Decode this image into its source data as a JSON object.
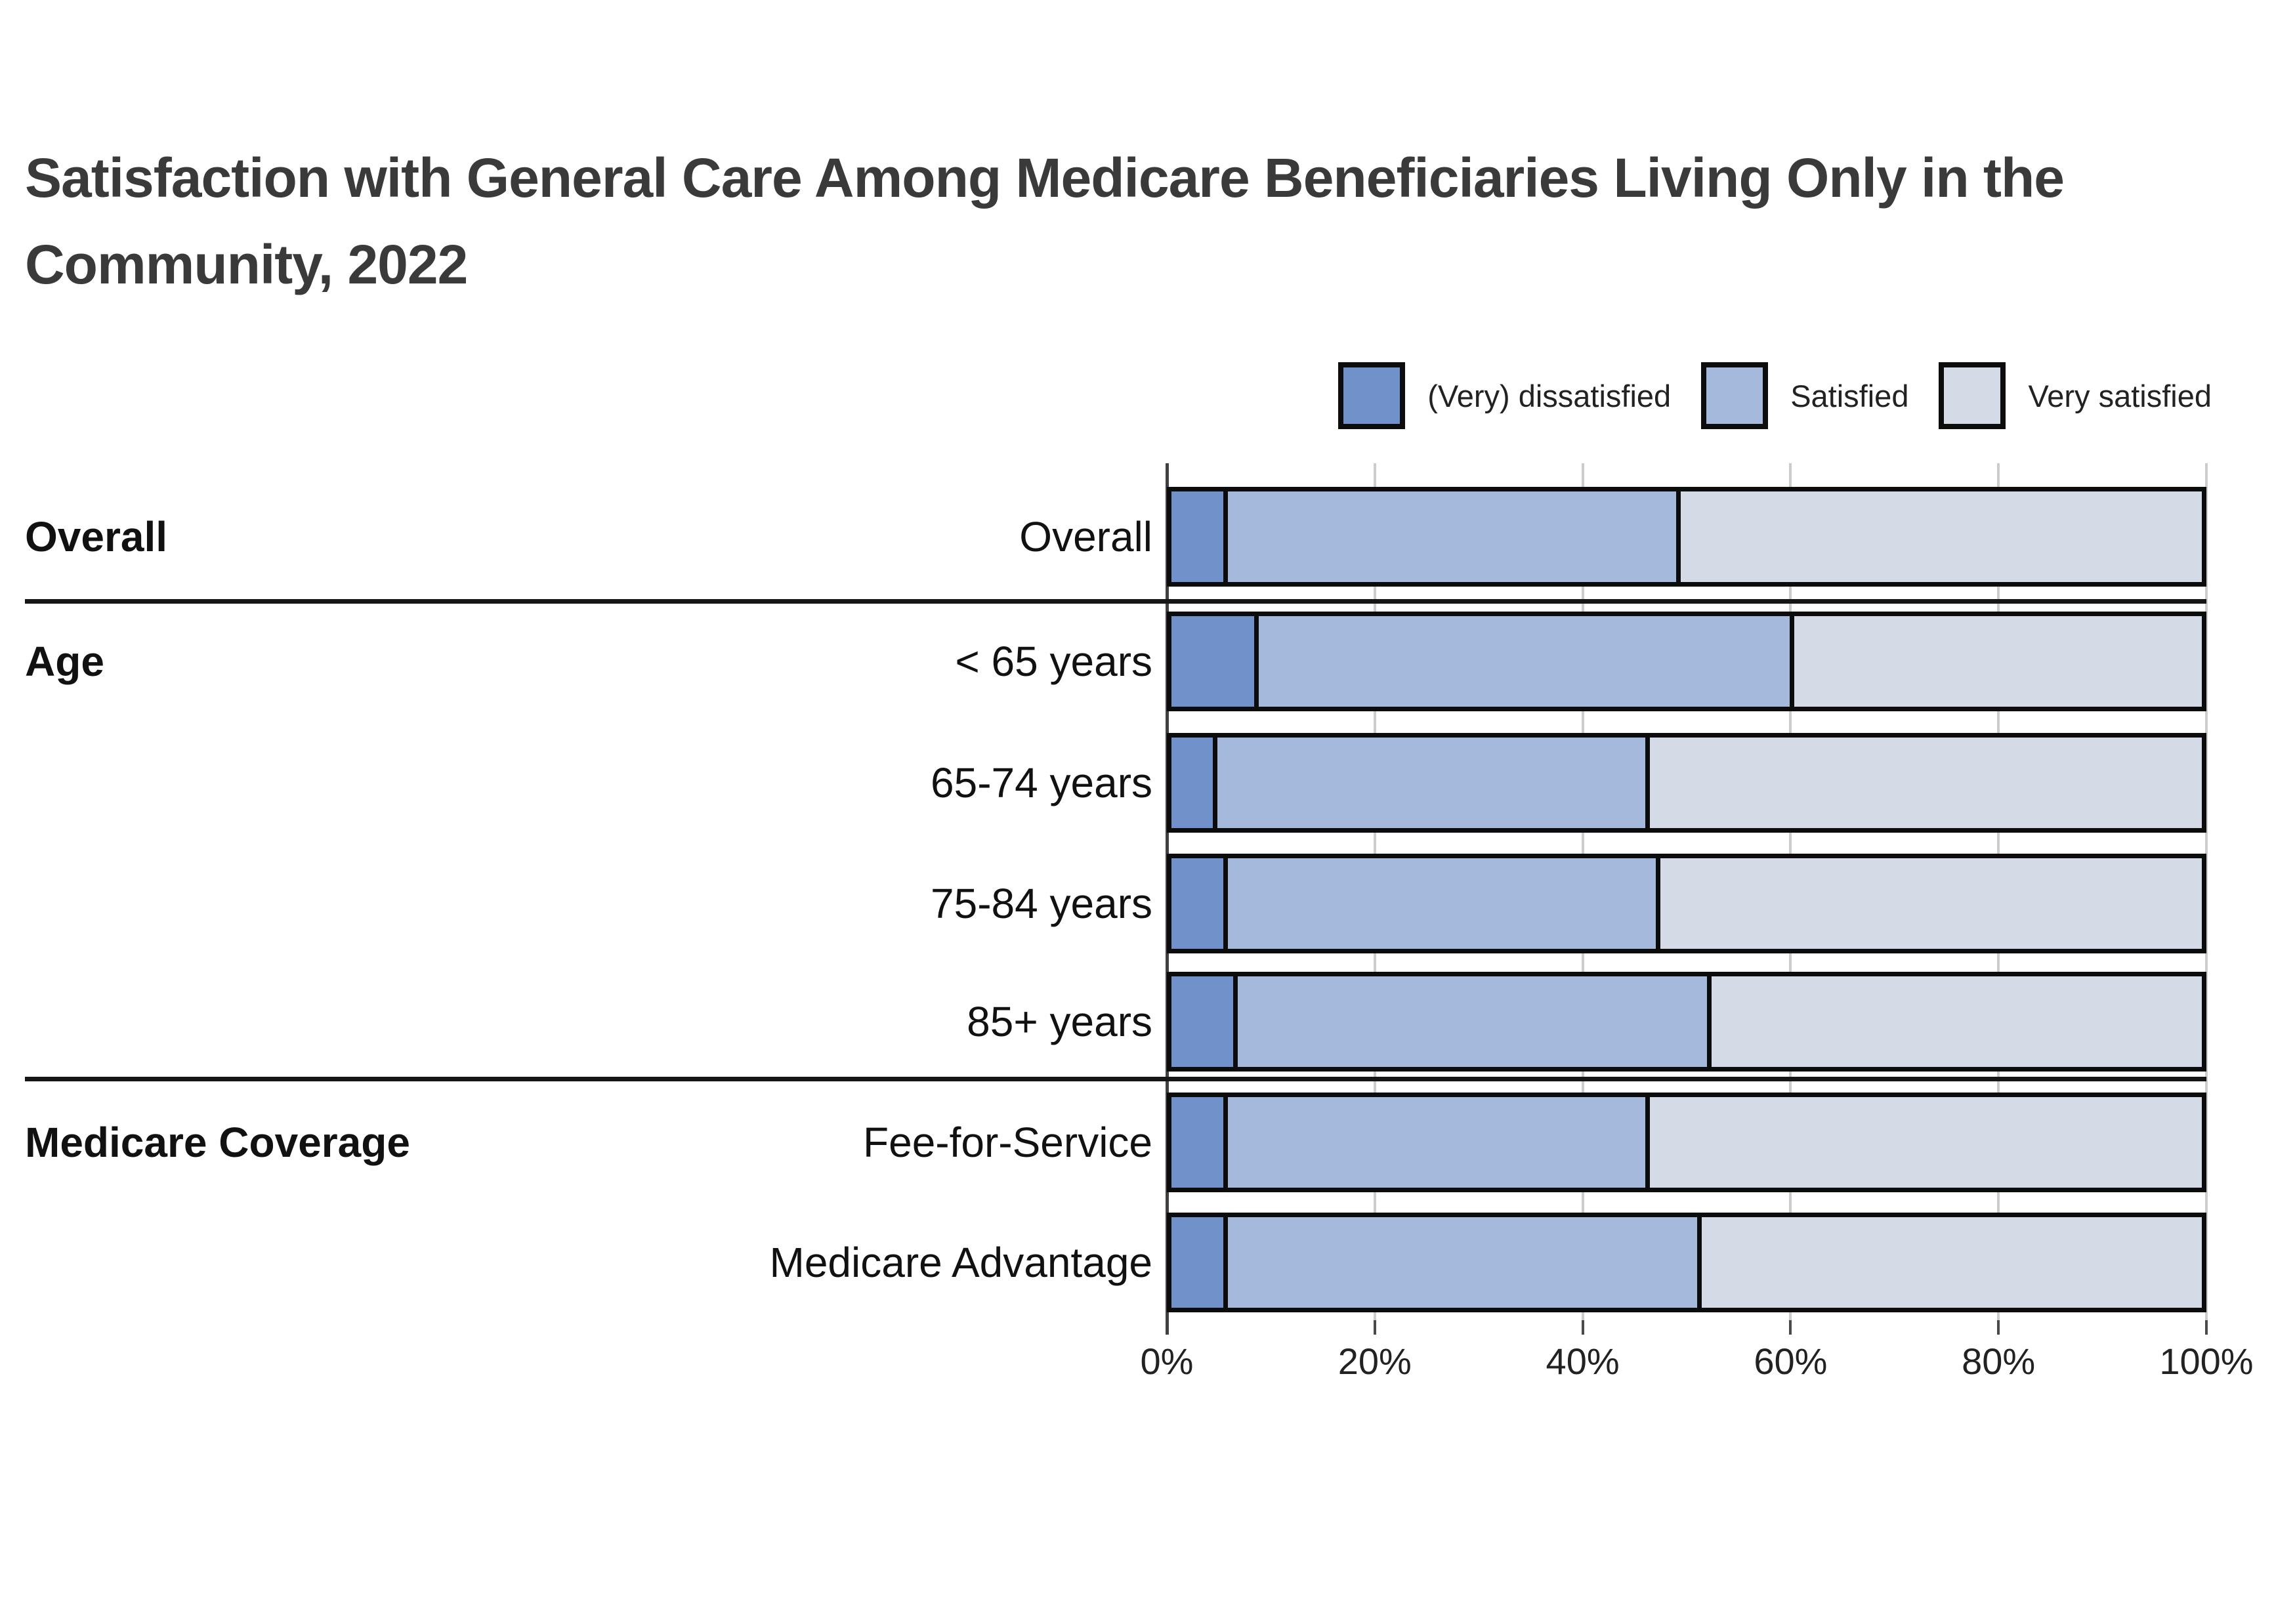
{
  "chart_data": {
    "type": "bar",
    "orientation": "horizontal",
    "stacked": true,
    "title": "Satisfaction with General Care Among Medicare Beneficiaries Living Only in the Community, 2022",
    "categories": [
      "Overall",
      "< 65 years",
      "65-74 years",
      "75-84 years",
      "85+ years",
      "Fee-for-Service",
      "Medicare Advantage"
    ],
    "groups": [
      {
        "label": "Overall",
        "category_indexes": [
          0
        ]
      },
      {
        "label": "Age",
        "category_indexes": [
          1,
          2,
          3,
          4
        ]
      },
      {
        "label": "Medicare Coverage",
        "category_indexes": [
          5,
          6
        ]
      }
    ],
    "series": [
      {
        "name": "(Very) dissatisfied",
        "color": "#7191cb",
        "values": [
          5,
          8,
          4,
          5,
          6,
          5,
          5
        ]
      },
      {
        "name": "Satisfied",
        "color": "#a5b9dc",
        "values": [
          44,
          52,
          42,
          42,
          46,
          41,
          46
        ]
      },
      {
        "name": "Very satisfied",
        "color": "#d5dbe6",
        "values": [
          51,
          40,
          54,
          53,
          48,
          54,
          49
        ]
      }
    ],
    "xlabel": "",
    "ylabel": "",
    "xlim": [
      0,
      100
    ],
    "x_ticks": [
      "0%",
      "20%",
      "40%",
      "60%",
      "80%",
      "100%"
    ],
    "legend_position": "top-right",
    "grid": true
  },
  "colors": {
    "background": "#ffffff",
    "title_text": "#3a3a3a",
    "label_text": "#111111",
    "axis_text": "#222222",
    "gridline": "#cccccc",
    "bar_border": "#0c0c0c",
    "separator": "#161616"
  }
}
